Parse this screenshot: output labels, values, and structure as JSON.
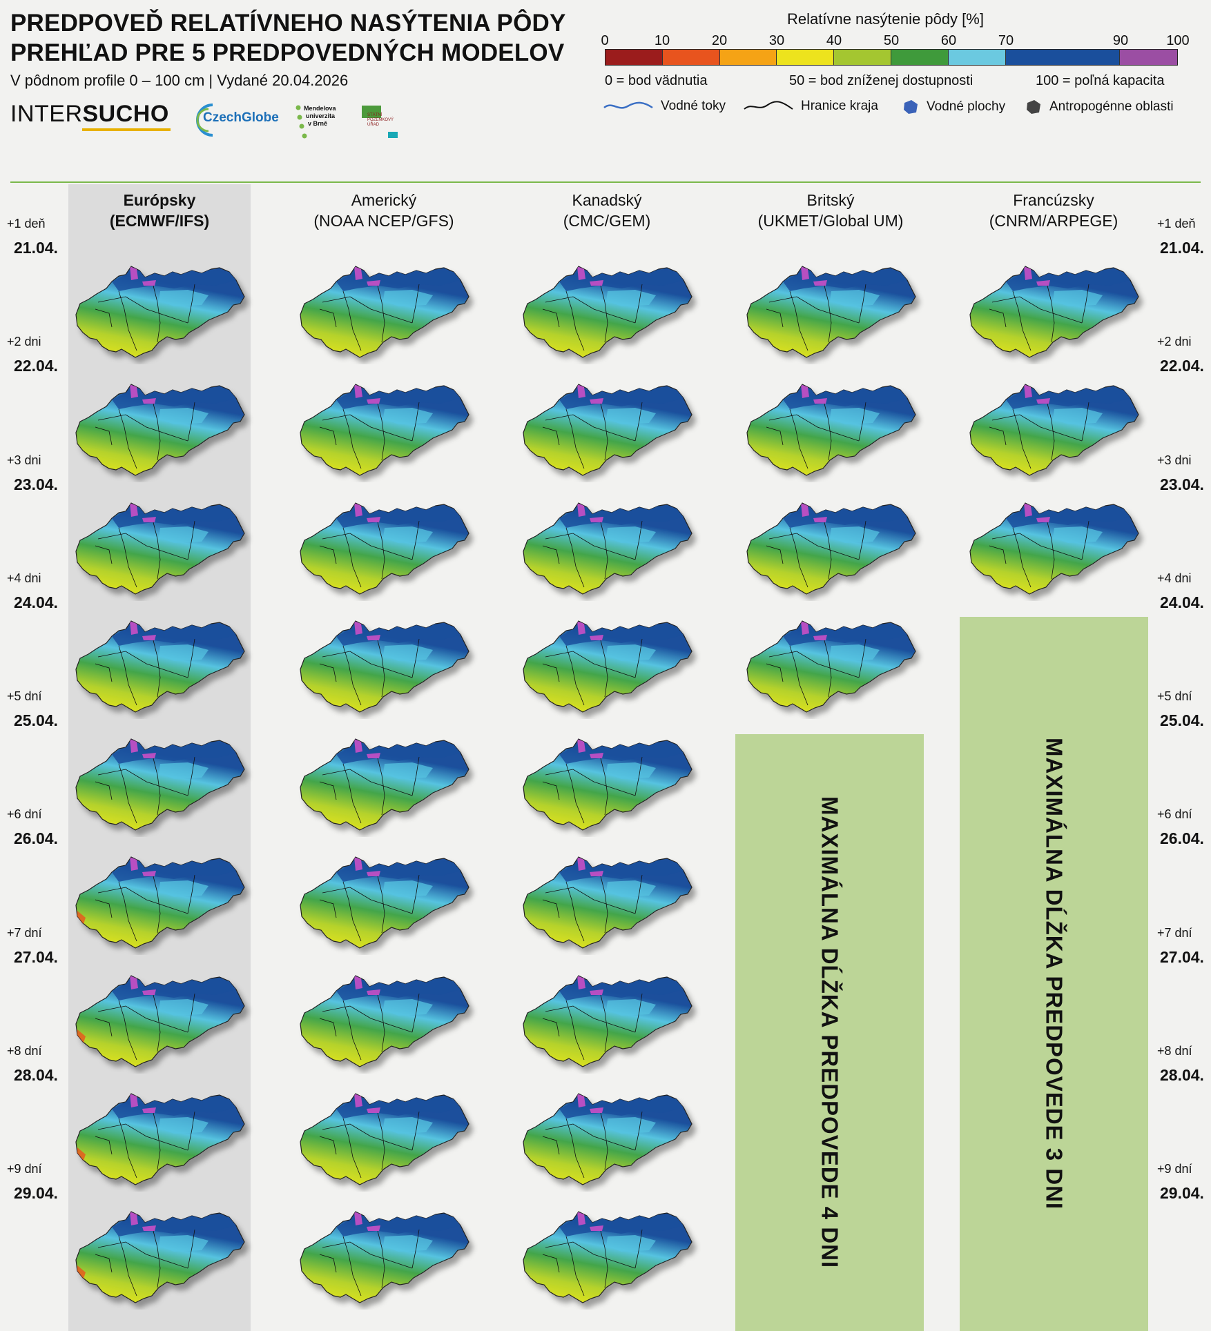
{
  "header": {
    "title_line1": "PREDPOVEĎ RELATÍVNEHO NASÝTENIA PÔDY",
    "title_line2": "PREHĽAD PRE 5 PREDPOVEDNÝCH MODELOV",
    "subtitle": "V pôdnom profile 0 – 100 cm | Vydané 20.04.2026",
    "logos": {
      "intersucho_thin": "INTER",
      "intersucho_bold": "SUCHO",
      "czechglobe": "CzechGlobe",
      "mendelu": [
        "Mendelova",
        "univerzita",
        "v Brně"
      ],
      "spu": "STÁTNÍ\nPOZEMKOVÝ\nÚŘAD"
    }
  },
  "legend": {
    "title": "Relatívne nasýtenie pôdy [%]",
    "ticks": [
      "0",
      "10",
      "20",
      "30",
      "40",
      "50",
      "60",
      "70",
      "90",
      "100"
    ],
    "classes": [
      {
        "from": 0,
        "to": 10,
        "color": "#9b1c1c"
      },
      {
        "from": 10,
        "to": 20,
        "color": "#e8541e"
      },
      {
        "from": 20,
        "to": 30,
        "color": "#f5a315"
      },
      {
        "from": 30,
        "to": 40,
        "color": "#ede31d"
      },
      {
        "from": 40,
        "to": 50,
        "color": "#a4c630"
      },
      {
        "from": 50,
        "to": 60,
        "color": "#3f9a3b"
      },
      {
        "from": 60,
        "to": 70,
        "color": "#6bc9e0"
      },
      {
        "from": 70,
        "to": 90,
        "color": "#1a4f9c"
      },
      {
        "from": 90,
        "to": 100,
        "color": "#9b4ea3"
      }
    ],
    "notes": [
      "0 = bod vädnutia",
      "50 = bod zníženej dostupnosti",
      "100 = poľná kapacita"
    ],
    "symbols": [
      {
        "icon": "river-line-icon",
        "label": "Vodné toky",
        "color": "#3a6fc4"
      },
      {
        "icon": "border-line-icon",
        "label": "Hranice kraja",
        "color": "#111111"
      },
      {
        "icon": "water-body-icon",
        "label": "Vodné plochy",
        "color": "#3a62b8"
      },
      {
        "icon": "urban-area-icon",
        "label": "Antropogénne oblasti",
        "color": "#444444"
      }
    ]
  },
  "models": [
    {
      "name": "Európsky",
      "code": "(ECMWF/IFS)",
      "max_days": 9,
      "highlighted": true
    },
    {
      "name": "Americký",
      "code": "(NOAA NCEP/GFS)",
      "max_days": 9,
      "highlighted": false
    },
    {
      "name": "Kanadský",
      "code": "(CMC/GEM)",
      "max_days": 9,
      "highlighted": false
    },
    {
      "name": "Britský",
      "code": "(UKMET/Global UM)",
      "max_days": 4,
      "highlighted": false
    },
    {
      "name": "Francúzsky",
      "code": "(CNRM/ARPEGE)",
      "max_days": 3,
      "highlighted": false
    }
  ],
  "days": [
    {
      "offset": "+1 deň",
      "date": "21.04."
    },
    {
      "offset": "+2 dni",
      "date": "22.04."
    },
    {
      "offset": "+3 dni",
      "date": "23.04."
    },
    {
      "offset": "+4 dni",
      "date": "24.04."
    },
    {
      "offset": "+5 dní",
      "date": "25.04."
    },
    {
      "offset": "+6 dní",
      "date": "26.04."
    },
    {
      "offset": "+7 dní",
      "date": "27.04."
    },
    {
      "offset": "+8 dní",
      "date": "28.04."
    },
    {
      "offset": "+9 dní",
      "date": "29.04."
    }
  ],
  "placeholders": [
    {
      "model": "Britský",
      "text": "MAXIMÁLNA DĹŽKA PREDPOVEDE 4 DNI"
    },
    {
      "model": "Francúzsky",
      "text": "MAXIMÁLNA DĹŽKA PREDPOVEDE 3 DNI"
    }
  ]
}
